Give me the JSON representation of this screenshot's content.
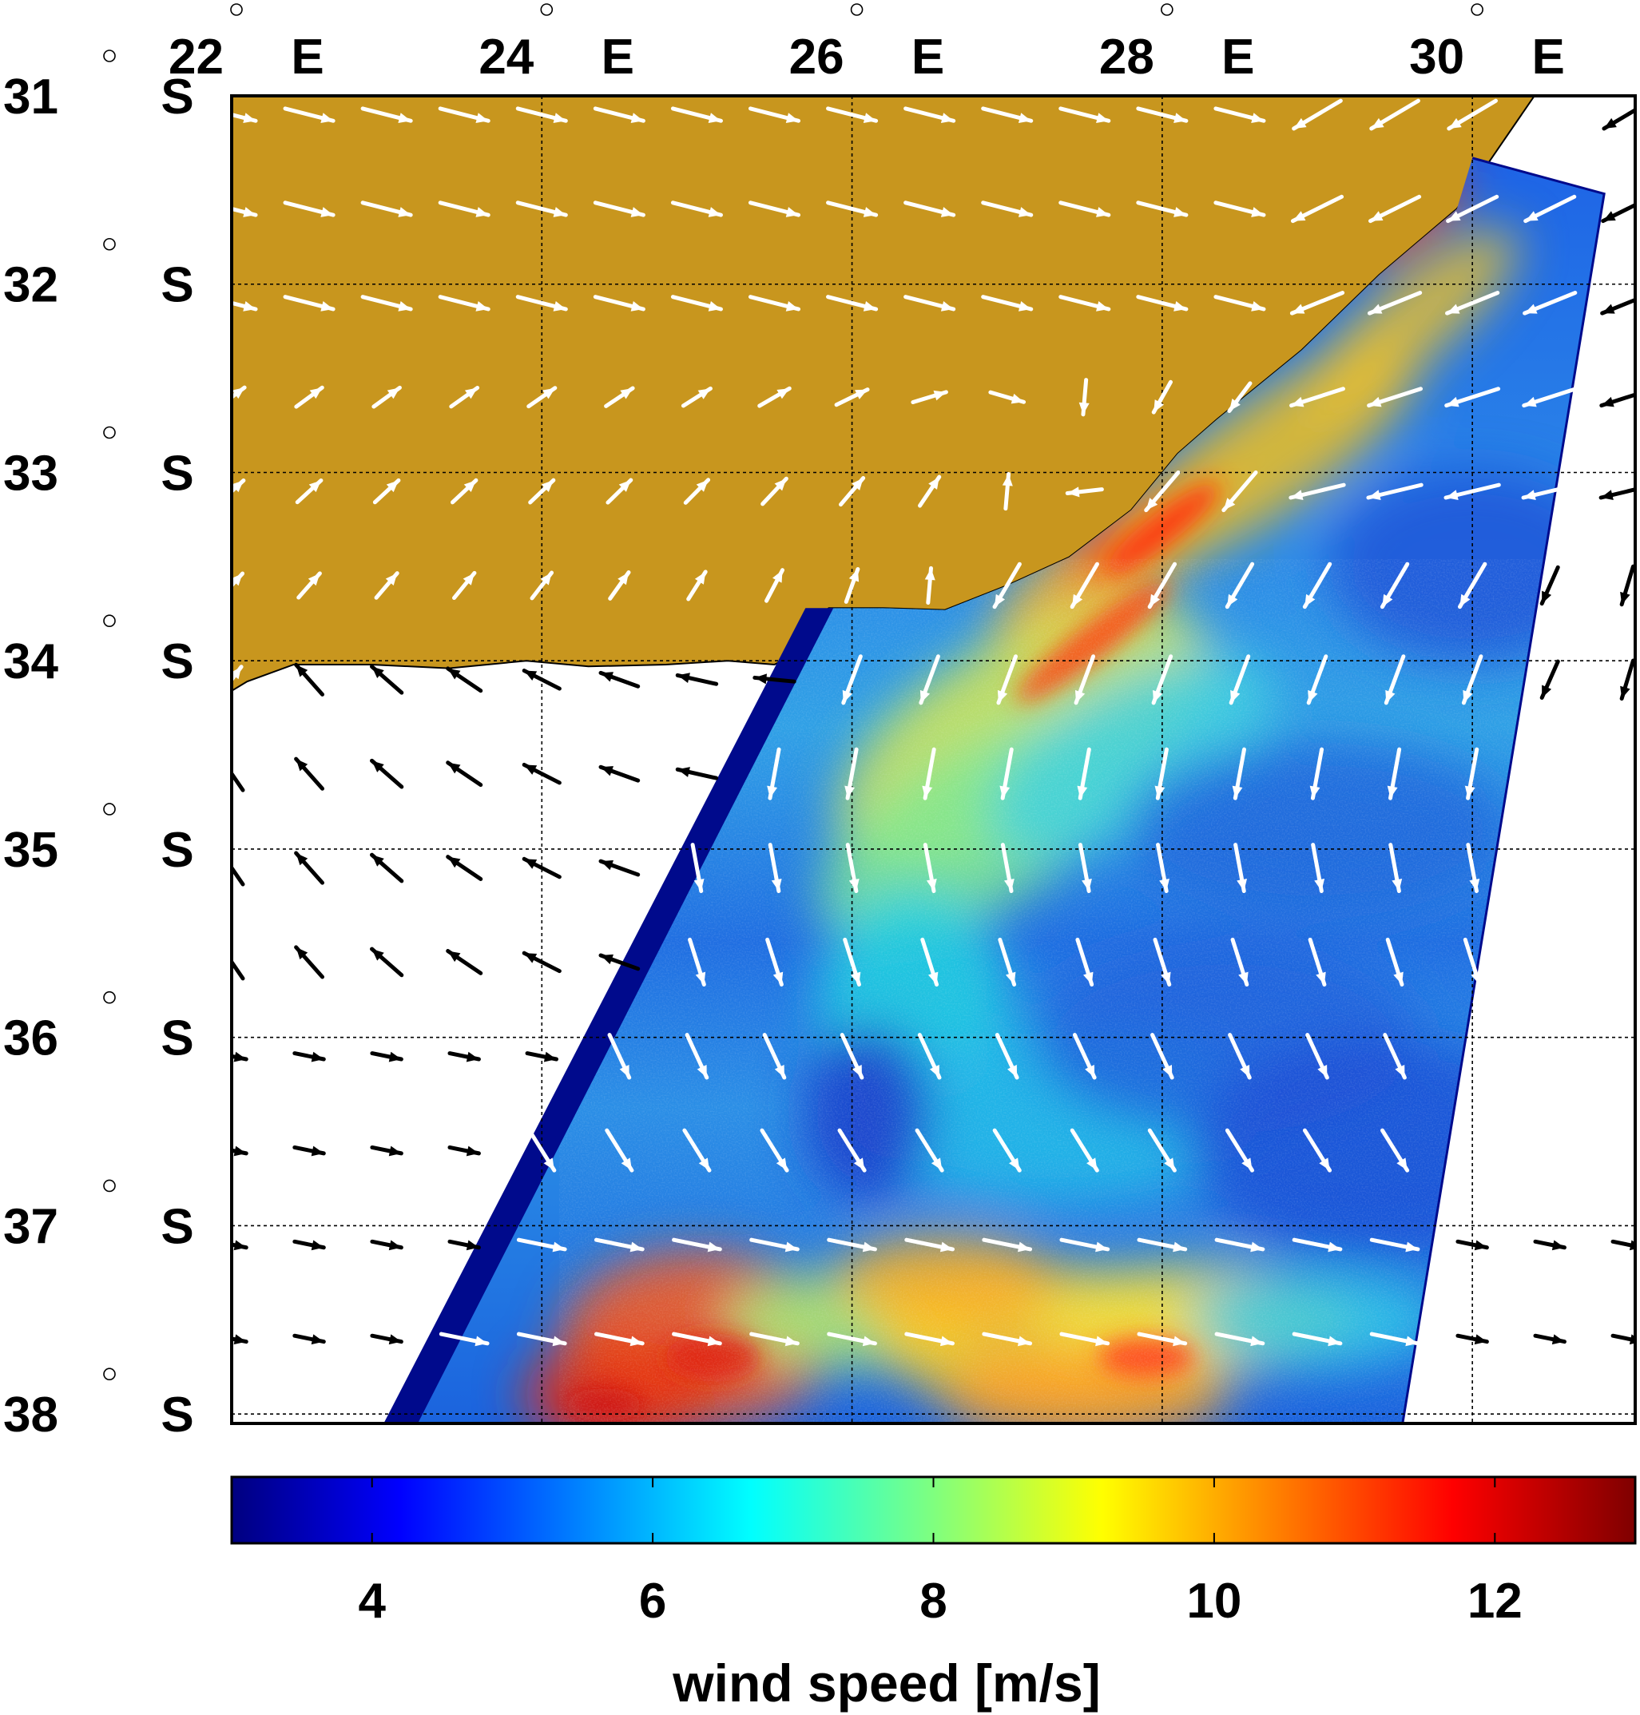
{
  "map": {
    "longitude_ticks": [
      {
        "lon": 22,
        "deg": "22",
        "hem": "E"
      },
      {
        "lon": 24,
        "deg": "24",
        "hem": "E"
      },
      {
        "lon": 26,
        "deg": "26",
        "hem": "E"
      },
      {
        "lon": 28,
        "deg": "28",
        "hem": "E"
      },
      {
        "lon": 30,
        "deg": "30",
        "hem": "E"
      }
    ],
    "latitude_ticks": [
      {
        "lat": 31,
        "deg": "31",
        "hem": "S"
      },
      {
        "lat": 32,
        "deg": "32",
        "hem": "S"
      },
      {
        "lat": 33,
        "deg": "33",
        "hem": "S"
      },
      {
        "lat": 34,
        "deg": "34",
        "hem": "S"
      },
      {
        "lat": 35,
        "deg": "35",
        "hem": "S"
      },
      {
        "lat": 36,
        "deg": "36",
        "hem": "S"
      },
      {
        "lat": 37,
        "deg": "37",
        "hem": "S"
      },
      {
        "lat": 38,
        "deg": "38",
        "hem": "S"
      }
    ],
    "extent": {
      "lon_min": 22,
      "lon_max": 31.05,
      "lat_min": 31,
      "lat_max": 38.05
    },
    "colors": {
      "land": "#c8961e",
      "ocean": "#ffffff",
      "swath_edge": "#000a8c",
      "land_and_swath_arrows": "#ffffff",
      "ocean_arrows": "#000000",
      "grid": "#000000"
    },
    "colorbar": {
      "label": "wind speed [m/s]",
      "ticks": [
        "4",
        "6",
        "8",
        "10",
        "12"
      ],
      "tick_values": [
        4,
        6,
        8,
        10,
        12
      ],
      "range": [
        3,
        13
      ],
      "colormap": "jet"
    }
  }
}
